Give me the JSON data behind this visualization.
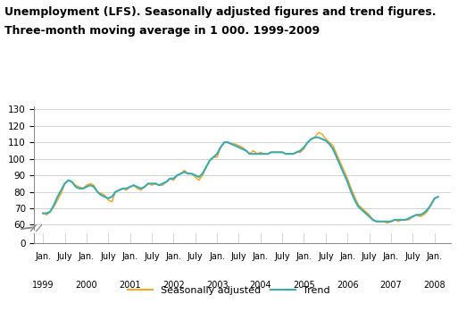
{
  "title_line1": "Unemployment (LFS). Seasonally adjusted figures and trend figures.",
  "title_line2": "Three-month moving average in 1 000. 1999-2009",
  "seasonally_adjusted": [
    67,
    66,
    68,
    71,
    75,
    79,
    85,
    87,
    86,
    84,
    83,
    82,
    84,
    85,
    84,
    80,
    79,
    78,
    75,
    74,
    80,
    81,
    82,
    81,
    83,
    84,
    82,
    81,
    83,
    85,
    84,
    85,
    84,
    84,
    86,
    88,
    87,
    90,
    91,
    93,
    91,
    91,
    89,
    87,
    90,
    95,
    99,
    101,
    101,
    107,
    110,
    110,
    109,
    109,
    108,
    107,
    105,
    103,
    105,
    103,
    104,
    103,
    103,
    104,
    104,
    104,
    104,
    103,
    103,
    103,
    104,
    104,
    106,
    110,
    112,
    113,
    116,
    115,
    112,
    110,
    108,
    103,
    98,
    93,
    88,
    82,
    77,
    72,
    70,
    68,
    66,
    63,
    62,
    62,
    62,
    61,
    62,
    63,
    62,
    63,
    63,
    63,
    65,
    66,
    65,
    66,
    68,
    72,
    76,
    77
  ],
  "trend": [
    67,
    67,
    68,
    72,
    77,
    81,
    85,
    87,
    86,
    83,
    82,
    82,
    83,
    84,
    83,
    80,
    78,
    77,
    76,
    77,
    80,
    81,
    82,
    82,
    83,
    84,
    83,
    82,
    83,
    85,
    85,
    85,
    84,
    85,
    86,
    88,
    88,
    90,
    91,
    92,
    91,
    91,
    90,
    89,
    91,
    95,
    99,
    101,
    103,
    107,
    110,
    110,
    109,
    108,
    107,
    106,
    105,
    103,
    103,
    103,
    103,
    103,
    103,
    104,
    104,
    104,
    104,
    103,
    103,
    103,
    104,
    105,
    107,
    110,
    112,
    113,
    113,
    112,
    111,
    109,
    106,
    101,
    96,
    91,
    86,
    80,
    75,
    71,
    69,
    67,
    65,
    63,
    62,
    62,
    62,
    62,
    62,
    63,
    63,
    63,
    63,
    64,
    65,
    66,
    66,
    67,
    69,
    72,
    76,
    77
  ],
  "seasonally_adjusted_color": "#f5a623",
  "trend_color": "#3aacad",
  "background_color": "#ffffff",
  "grid_color": "#cccccc",
  "title_fontsize": 9.0,
  "tick_fontsize": 7.5,
  "legend_fontsize": 8.0
}
